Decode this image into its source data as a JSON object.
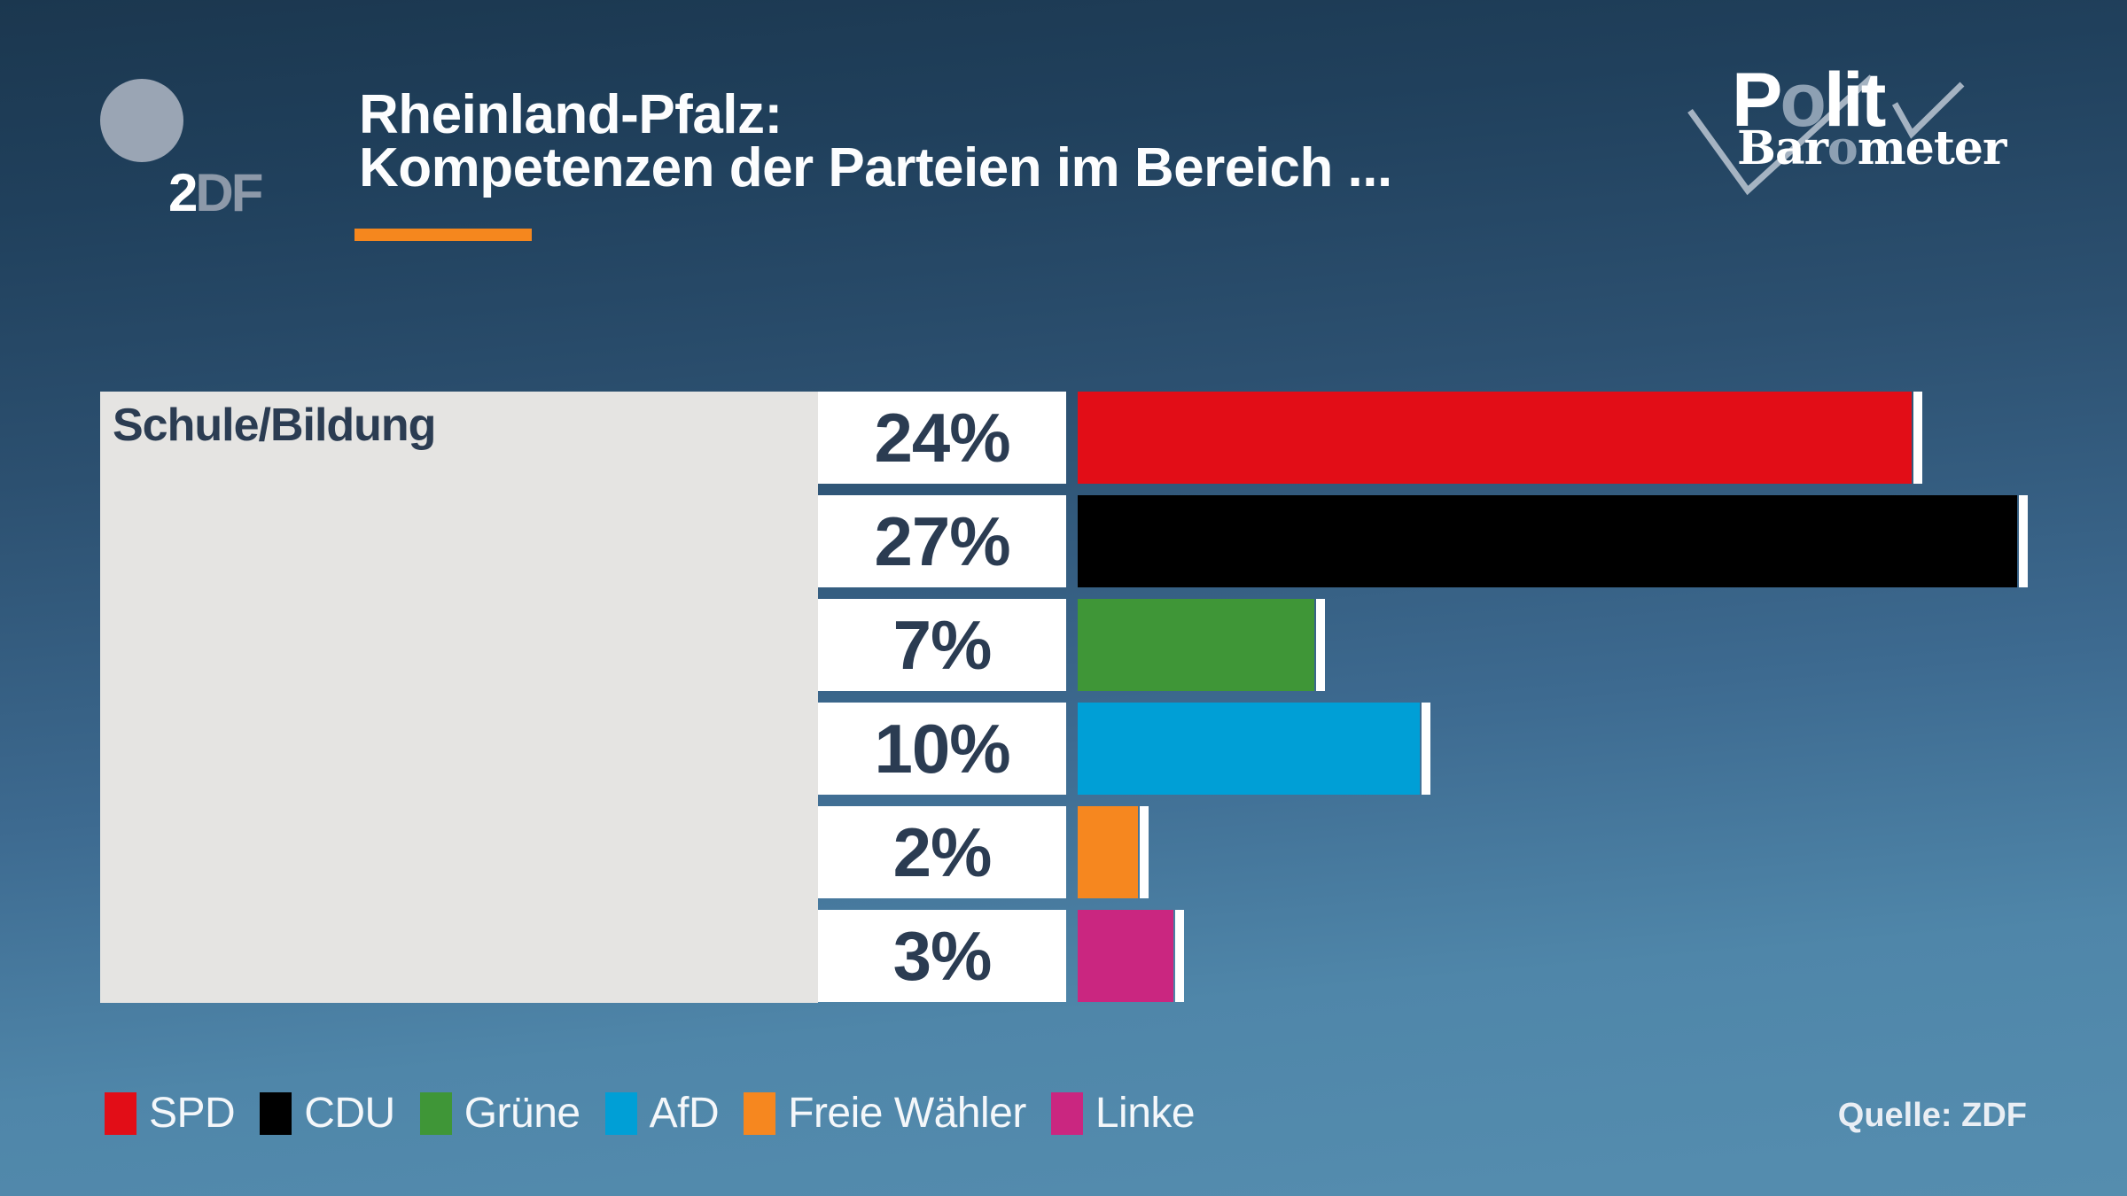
{
  "header": {
    "title_lines": [
      "Rheinland-Pfalz:",
      "Kompetenzen der Parteien im Bereich ..."
    ],
    "zdf_logo": {
      "two": "2",
      "df": "DF"
    },
    "politbarometer": {
      "polit": {
        "pre": "P",
        "o": "o",
        "post": "lit"
      },
      "barometer": {
        "pre": "Bar",
        "o": "o",
        "post": "meter"
      }
    }
  },
  "chart_data": {
    "type": "bar",
    "orientation": "horizontal",
    "title": "Rheinland-Pfalz: Kompetenzen der Parteien im Bereich ...",
    "category": "Schule/Bildung",
    "unit": "%",
    "xlim": [
      0,
      30
    ],
    "grid": false,
    "legend_position": "bottom",
    "series": [
      {
        "name": "SPD",
        "value": 24,
        "label": "24%",
        "color": "#e20d17"
      },
      {
        "name": "CDU",
        "value": 27,
        "label": "27%",
        "color": "#000000"
      },
      {
        "name": "Grüne",
        "value": 7,
        "label": "7%",
        "color": "#3f9637"
      },
      {
        "name": "AfD",
        "value": 10,
        "label": "10%",
        "color": "#009fd6"
      },
      {
        "name": "Freie Wähler",
        "value": 2,
        "label": "2%",
        "color": "#f6871f"
      },
      {
        "name": "Linke",
        "value": 3,
        "label": "3%",
        "color": "#ca2680"
      }
    ]
  },
  "source": "Quelle: ZDF",
  "colors": {
    "background_top": "#1b374f",
    "background_bottom": "#558dae",
    "panel_gray": "#e5e4e2",
    "text_navy": "#2b3c52",
    "accent_orange": "#f5871e",
    "logo_gray": "#9aa5b4",
    "logo_o_gray": "#8da0b3",
    "zigzag_gray": "#b7c3cf"
  }
}
